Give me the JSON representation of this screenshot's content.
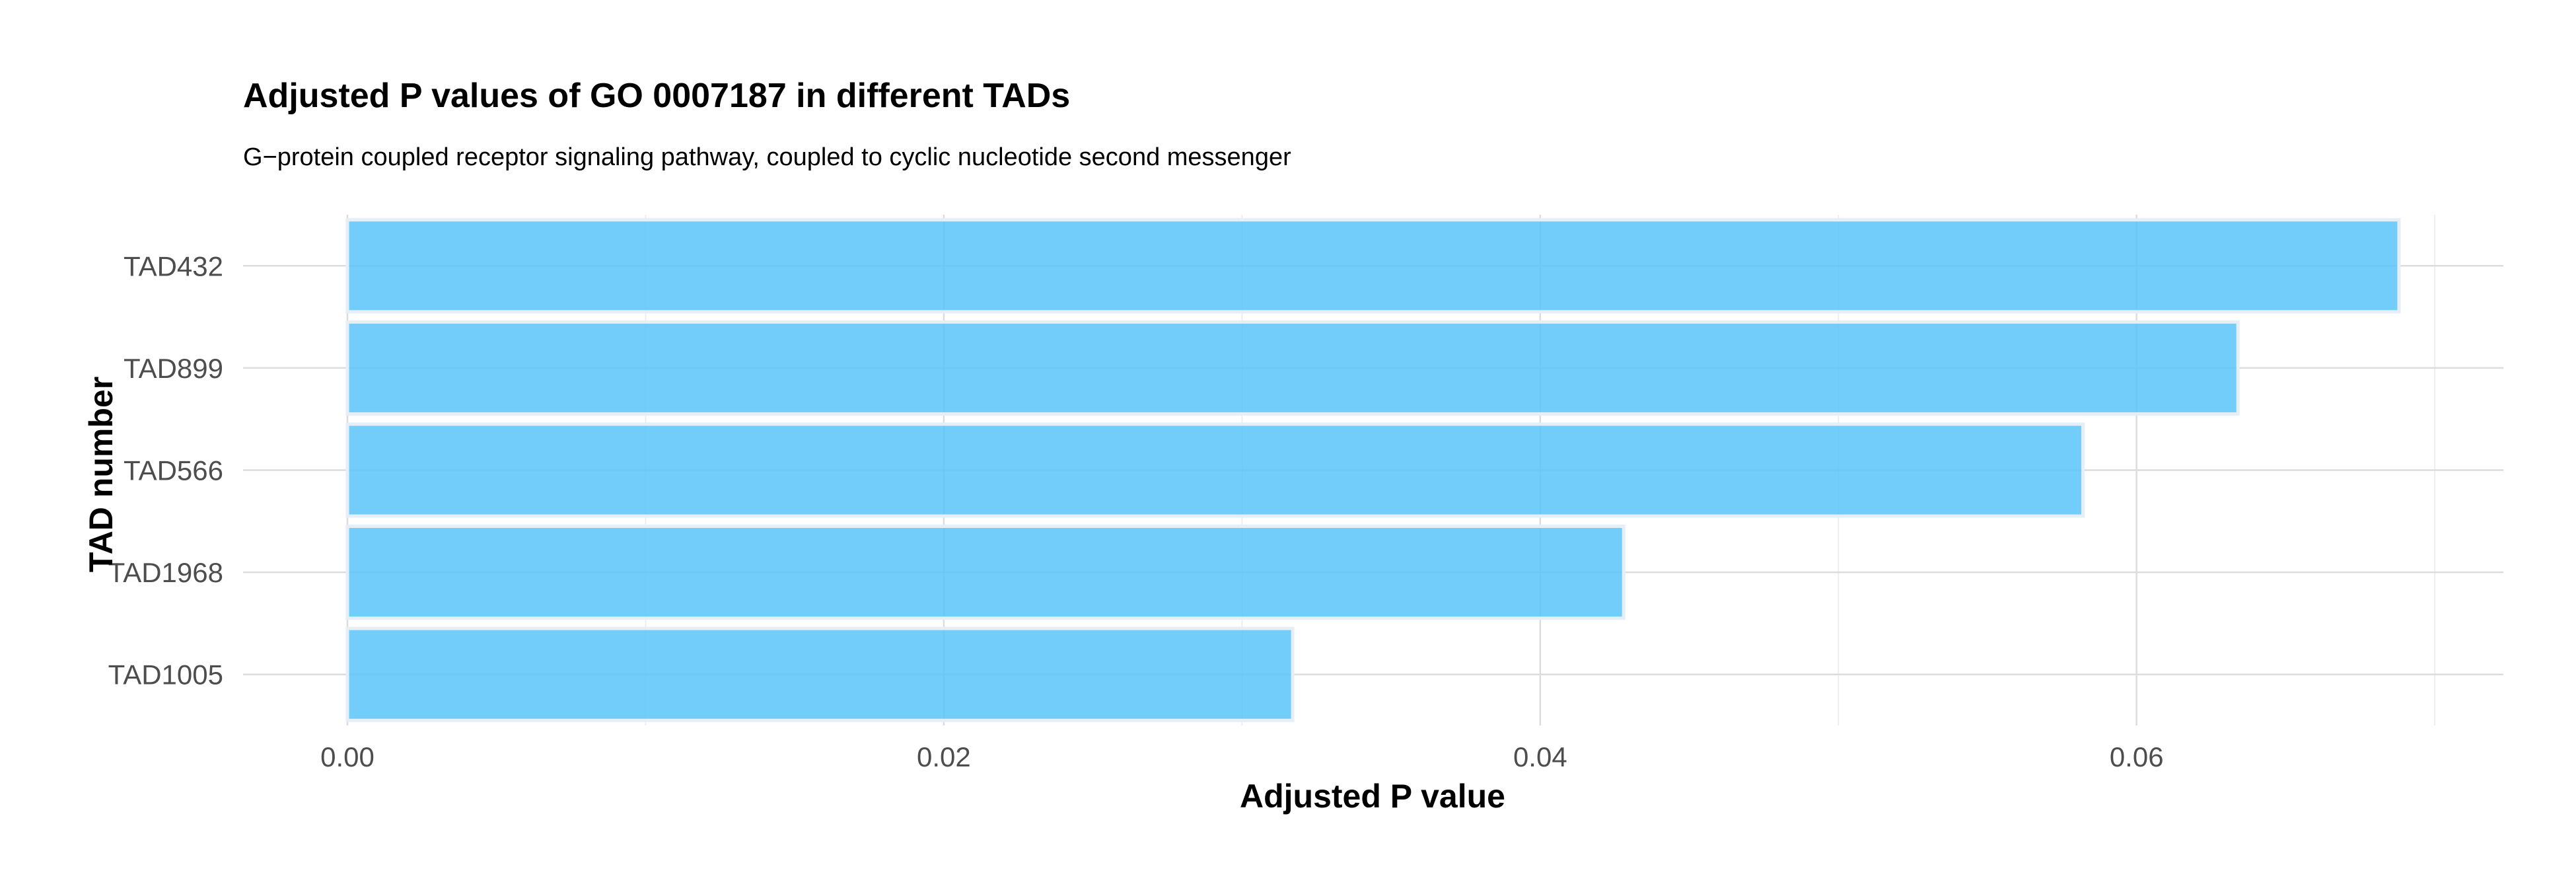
{
  "chart_data": {
    "type": "bar",
    "orientation": "horizontal",
    "title": "Adjusted P values of GO 0007187 in different TADs",
    "subtitle": "G−protein coupled receptor signaling pathway, coupled to cyclic nucleotide second messenger",
    "xlabel": "Adjusted P value",
    "ylabel": "TAD number",
    "categories": [
      "TAD432",
      "TAD899",
      "TAD566",
      "TAD1968",
      "TAD1005"
    ],
    "values": [
      0.0688,
      0.0634,
      0.0582,
      0.0428,
      0.0317
    ],
    "xlim": [
      -0.0035,
      0.0723
    ],
    "xticks": [
      0.0,
      0.02,
      0.04,
      0.06
    ],
    "xtick_labels": [
      "0.00",
      "0.02",
      "0.04",
      "0.06"
    ],
    "bar_color": "#5bc4fa",
    "grid": true,
    "legend": "none"
  }
}
